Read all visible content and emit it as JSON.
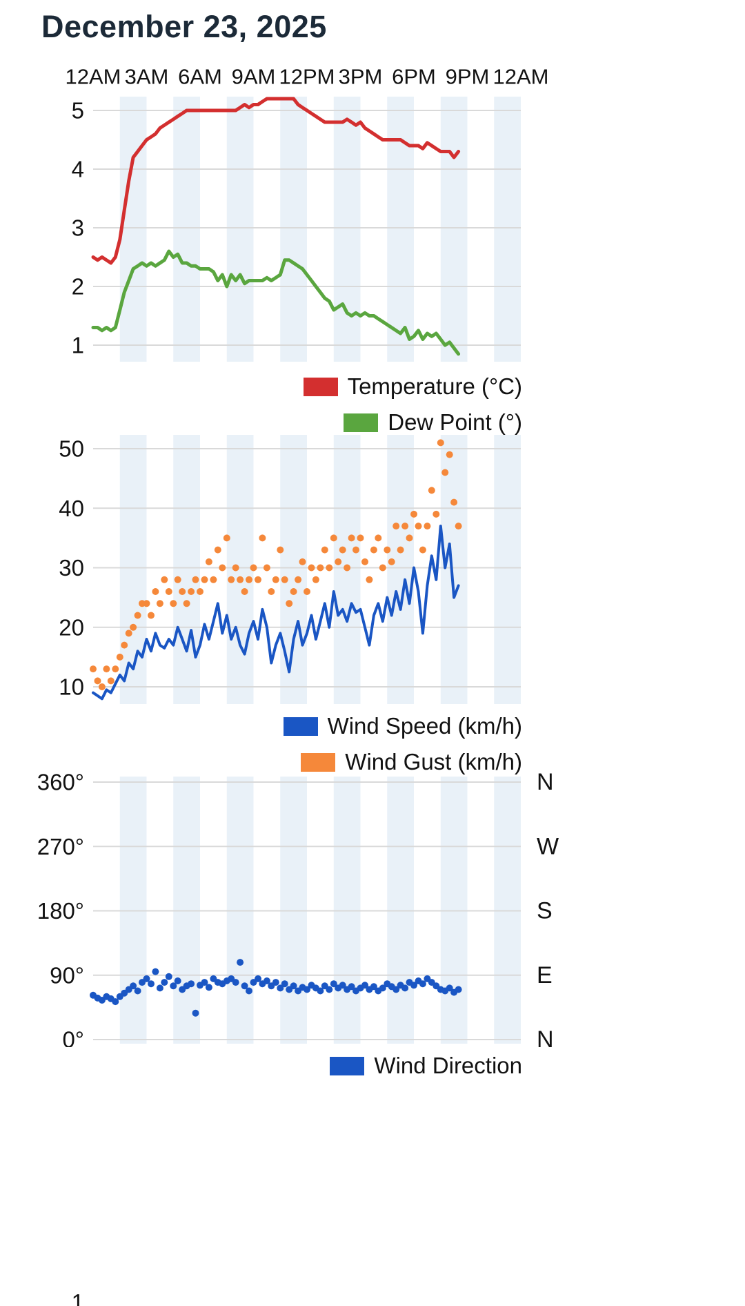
{
  "title": "December 23, 2025",
  "partial_bottom_label": "1",
  "colors": {
    "temperature": "#d32f2f",
    "dew_point": "#5aa63f",
    "wind_speed": "#1a56c4",
    "wind_gust": "#f5883a",
    "wind_direction": "#1a56c4",
    "stripe": "#e9f1f8",
    "grid": "#d9d9d9",
    "axis_text": "#121212",
    "title_text": "#1c2a38"
  },
  "time_axis": {
    "labels": [
      "12AM",
      "3AM",
      "6AM",
      "9AM",
      "12PM",
      "3PM",
      "6PM",
      "9PM",
      "12AM"
    ],
    "hours": [
      0,
      3,
      6,
      9,
      12,
      15,
      18,
      21,
      24
    ],
    "position": "top"
  },
  "chart_data": [
    {
      "type": "line",
      "title": "",
      "xlabel": "",
      "ylabel": "",
      "grid": true,
      "legend_position": "bottom-right",
      "xlim": [
        0,
        24
      ],
      "ylim": [
        0.72,
        5.24
      ],
      "yticks": [
        {
          "value": 5,
          "label": "5"
        },
        {
          "value": 4,
          "label": "4"
        },
        {
          "value": 3,
          "label": "3"
        },
        {
          "value": 2,
          "label": "2"
        },
        {
          "value": 1,
          "label": "1"
        }
      ],
      "x_hours": {
        "start": 0,
        "step": 0.25,
        "count": 83
      },
      "series": [
        {
          "id": "temperature",
          "name": "Temperature (°C)",
          "type": "line",
          "color_key": "temperature",
          "values": [
            2.5,
            2.45,
            2.5,
            2.45,
            2.4,
            2.5,
            2.8,
            3.3,
            3.8,
            4.2,
            4.3,
            4.4,
            4.5,
            4.55,
            4.6,
            4.7,
            4.75,
            4.8,
            4.85,
            4.9,
            4.95,
            5.0,
            5.0,
            5.0,
            5.0,
            5.0,
            5.0,
            5.0,
            5.0,
            5.0,
            5.0,
            5.0,
            5.0,
            5.05,
            5.1,
            5.05,
            5.1,
            5.1,
            5.15,
            5.2,
            5.2,
            5.2,
            5.2,
            5.2,
            5.2,
            5.2,
            5.1,
            5.05,
            5.0,
            4.95,
            4.9,
            4.85,
            4.8,
            4.8,
            4.8,
            4.8,
            4.8,
            4.85,
            4.8,
            4.75,
            4.8,
            4.7,
            4.65,
            4.6,
            4.55,
            4.5,
            4.5,
            4.5,
            4.5,
            4.5,
            4.45,
            4.4,
            4.4,
            4.4,
            4.35,
            4.45,
            4.4,
            4.35,
            4.3,
            4.3,
            4.3,
            4.2,
            4.3
          ]
        },
        {
          "id": "dew_point",
          "name": "Dew Point (°)",
          "type": "line",
          "color_key": "dew_point",
          "values": [
            1.3,
            1.3,
            1.25,
            1.3,
            1.25,
            1.3,
            1.6,
            1.9,
            2.1,
            2.3,
            2.35,
            2.4,
            2.35,
            2.4,
            2.35,
            2.4,
            2.45,
            2.6,
            2.5,
            2.55,
            2.4,
            2.4,
            2.35,
            2.35,
            2.3,
            2.3,
            2.3,
            2.25,
            2.1,
            2.2,
            2.0,
            2.2,
            2.1,
            2.2,
            2.05,
            2.1,
            2.1,
            2.1,
            2.1,
            2.15,
            2.1,
            2.15,
            2.2,
            2.45,
            2.45,
            2.4,
            2.35,
            2.3,
            2.2,
            2.1,
            2.0,
            1.9,
            1.8,
            1.75,
            1.6,
            1.65,
            1.7,
            1.55,
            1.5,
            1.55,
            1.5,
            1.55,
            1.5,
            1.5,
            1.45,
            1.4,
            1.35,
            1.3,
            1.25,
            1.2,
            1.3,
            1.1,
            1.15,
            1.25,
            1.1,
            1.2,
            1.15,
            1.2,
            1.1,
            1.0,
            1.05,
            0.95,
            0.85
          ]
        }
      ]
    },
    {
      "type": "line",
      "title": "",
      "xlabel": "",
      "ylabel": "",
      "grid": true,
      "legend_position": "bottom-right",
      "xlim": [
        0,
        24
      ],
      "ylim": [
        7,
        52
      ],
      "yticks": [
        {
          "value": 50,
          "label": "50"
        },
        {
          "value": 40,
          "label": "40"
        },
        {
          "value": 30,
          "label": "30"
        },
        {
          "value": 20,
          "label": "20"
        },
        {
          "value": 10,
          "label": "10"
        }
      ],
      "x_hours": {
        "start": 0,
        "step": 0.25,
        "count": 83
      },
      "series": [
        {
          "id": "wind_speed",
          "name": "Wind Speed (km/h)",
          "type": "line",
          "color_key": "wind_speed",
          "values": [
            9,
            8.5,
            8,
            9.5,
            9,
            10.5,
            12,
            11,
            14,
            13,
            16,
            15,
            18,
            16,
            19,
            17,
            16.5,
            18,
            17,
            20,
            18,
            16,
            19.5,
            15,
            17,
            20.5,
            18,
            21,
            24,
            19,
            22,
            18,
            20,
            17,
            15.5,
            19,
            21,
            18,
            23,
            20,
            14,
            17,
            19,
            16,
            12.5,
            18,
            21,
            17,
            19,
            22,
            18,
            21,
            24,
            20,
            26,
            22,
            23,
            21,
            24,
            22.5,
            23,
            20,
            17,
            22,
            24,
            21,
            25,
            22,
            26,
            23,
            28,
            24,
            30,
            26,
            19,
            27,
            32,
            28,
            37,
            30,
            34,
            25,
            27
          ]
        },
        {
          "id": "wind_gust",
          "name": "Wind Gust (km/h)",
          "type": "scatter",
          "color_key": "wind_gust",
          "values": [
            13,
            11,
            10,
            13,
            11,
            13,
            15,
            17,
            19,
            20,
            22,
            24,
            24,
            22,
            26,
            24,
            28,
            26,
            24,
            28,
            26,
            24,
            26,
            28,
            26,
            28,
            31,
            28,
            33,
            30,
            35,
            28,
            30,
            28,
            26,
            28,
            30,
            28,
            35,
            30,
            26,
            28,
            33,
            28,
            24,
            26,
            28,
            31,
            26,
            30,
            28,
            30,
            33,
            30,
            35,
            31,
            33,
            30,
            35,
            33,
            35,
            31,
            28,
            33,
            35,
            30,
            33,
            31,
            37,
            33,
            37,
            35,
            39,
            37,
            33,
            37,
            43,
            39,
            51,
            46,
            49,
            41,
            37
          ]
        }
      ]
    },
    {
      "type": "scatter",
      "title": "",
      "xlabel": "",
      "ylabel": "",
      "grid": true,
      "legend_position": "bottom-right",
      "xlim": [
        0,
        24
      ],
      "ylim": [
        -6,
        368
      ],
      "yticks": [
        {
          "value": 360,
          "label": "360°"
        },
        {
          "value": 270,
          "label": "270°"
        },
        {
          "value": 180,
          "label": "180°"
        },
        {
          "value": 90,
          "label": "90°"
        },
        {
          "value": 0,
          "label": "0°"
        }
      ],
      "right_labels": [
        {
          "value": 360,
          "label": "N"
        },
        {
          "value": 270,
          "label": "W"
        },
        {
          "value": 180,
          "label": "S"
        },
        {
          "value": 90,
          "label": "E"
        },
        {
          "value": 0,
          "label": "N"
        }
      ],
      "x_hours": {
        "start": 0,
        "step": 0.25,
        "count": 83
      },
      "series": [
        {
          "id": "wind_direction",
          "name": "Wind Direction",
          "type": "scatter",
          "color_key": "wind_direction",
          "values": [
            62,
            58,
            55,
            60,
            57,
            53,
            60,
            65,
            70,
            75,
            68,
            80,
            85,
            78,
            95,
            72,
            80,
            88,
            75,
            82,
            70,
            75,
            78,
            37,
            76,
            80,
            73,
            85,
            80,
            78,
            82,
            85,
            80,
            108,
            75,
            68,
            80,
            85,
            78,
            82,
            75,
            80,
            72,
            78,
            70,
            75,
            68,
            73,
            70,
            76,
            72,
            68,
            75,
            70,
            78,
            72,
            76,
            70,
            74,
            68,
            72,
            76,
            70,
            74,
            68,
            72,
            78,
            74,
            70,
            76,
            72,
            80,
            76,
            82,
            78,
            85,
            80,
            75,
            70,
            68,
            72,
            66,
            70
          ]
        }
      ]
    }
  ]
}
